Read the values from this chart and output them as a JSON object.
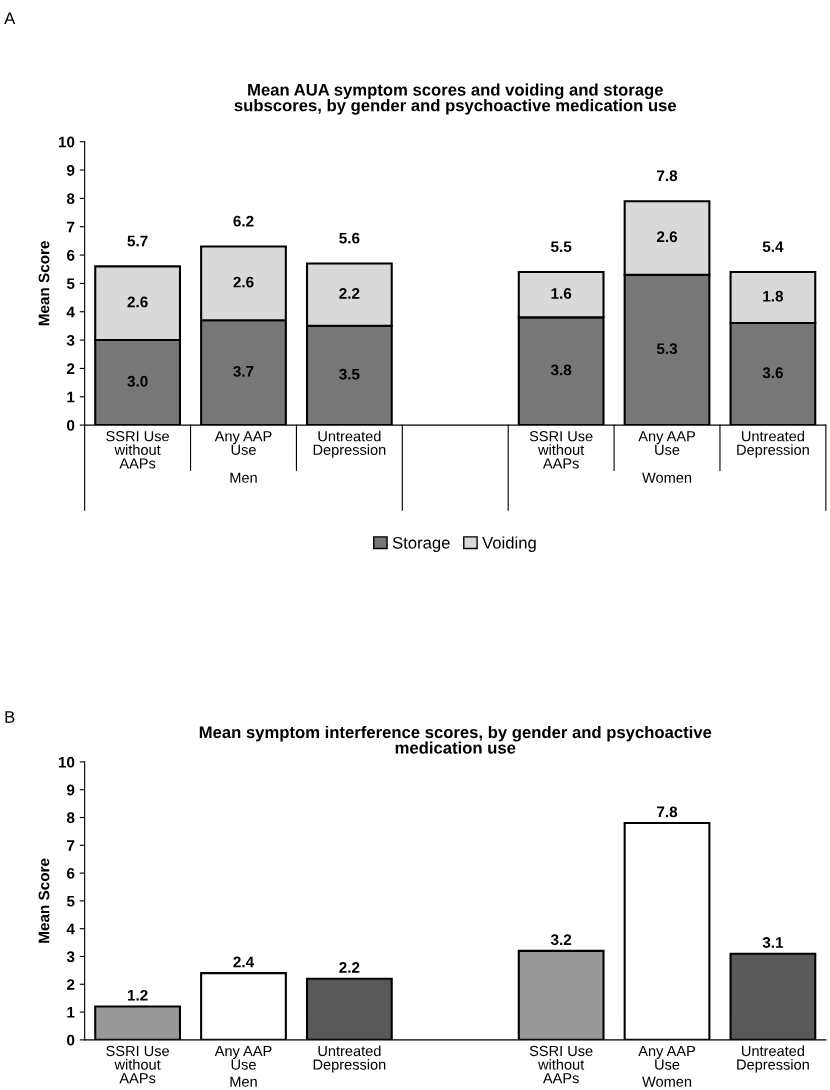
{
  "chart_data": [
    {
      "type": "bar",
      "stacked": true,
      "title": "Mean AUA symptom scores and voiding and storage\nsubscores, by gender and psychoactive medication use",
      "ylabel": "Mean Score",
      "categories": [
        "SSRI Use\nwithout\nAAPs",
        "Any AAP\nUse",
        "Untreated\nDepression",
        null,
        "SSRI Use\nwithout\nAAPs",
        "Any AAP\nUse",
        "Untreated\nDepression"
      ],
      "series": [
        {
          "name": "Storage",
          "color": "#777777",
          "values": [
            3.0,
            3.7,
            3.5,
            null,
            3.8,
            5.3,
            3.6
          ],
          "value_labels": [
            "3.0",
            "3.7",
            "3.5",
            null,
            "3.8",
            "5.3",
            "3.6"
          ]
        },
        {
          "name": "Voiding",
          "color": "#d9d9d9",
          "values": [
            2.6,
            2.6,
            2.2,
            null,
            1.6,
            2.6,
            1.8
          ],
          "value_labels": [
            "2.6",
            "2.6",
            "2.2",
            null,
            "1.6",
            "2.6",
            "1.8"
          ]
        }
      ],
      "totals": [
        "5.7",
        "6.2",
        "5.6",
        null,
        "5.5",
        "7.8",
        "5.4"
      ],
      "ylim": [
        0,
        10
      ],
      "yticks": [
        0,
        1,
        2,
        3,
        4,
        5,
        6,
        7,
        8,
        9,
        10
      ],
      "grid": false,
      "legend": "bottom",
      "annotations": [
        "A",
        "Men",
        "Women"
      ]
    },
    {
      "type": "bar",
      "title": "Mean symptom interference scores, by gender and psychoactive\nmedication use",
      "ylabel": "Mean Score",
      "categories": [
        "SSRI Use\nwithout\nAAPs",
        "Any AAP\nUse",
        "Untreated\nDepression",
        null,
        "SSRI Use\nwithout\nAAPs",
        "Any AAP\nUse",
        "Untreated\nDepression"
      ],
      "values": [
        1.2,
        2.4,
        2.2,
        null,
        3.2,
        7.8,
        3.1
      ],
      "colors": [
        "#999999",
        "#ffffff",
        "#595959",
        "#ffffff",
        "#999999",
        "#ffffff",
        "#595959"
      ],
      "data_labels": true,
      "ylim": [
        0,
        10
      ],
      "yticks": [
        0,
        1,
        2,
        3,
        4,
        5,
        6,
        7,
        8,
        9,
        10
      ],
      "grid": false,
      "annotations": [
        "B",
        "Men",
        "Women"
      ]
    }
  ]
}
